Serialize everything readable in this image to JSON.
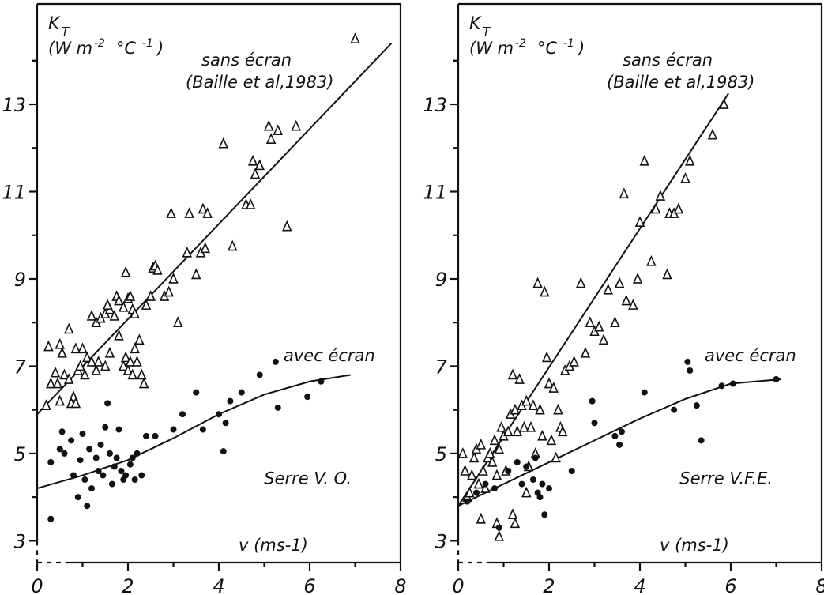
{
  "chart_data": [
    {
      "type": "scatter",
      "xlim": [
        0,
        8
      ],
      "ylim": [
        2.5,
        15.3
      ],
      "xticks": [
        0,
        2,
        4,
        6,
        8
      ],
      "yticks": [
        3,
        5,
        7,
        9,
        11,
        13
      ],
      "ylabel_main": "K",
      "ylabel_sub": "T",
      "ylabel_unit": "(W m",
      "ylabel_exp1": "-2",
      "ylabel_mid": "°C",
      "ylabel_exp2": "-1",
      "ylabel_close": ")",
      "xlabel": "v (ms-1)",
      "greenhouse_label": "Serre V. O.",
      "line_upper_label": "sans écran",
      "line_upper_ref": "(Baille et al,1983)",
      "line_lower_label": "avec écran",
      "series": [
        {
          "name": "sans écran",
          "marker": "triangle",
          "points": [
            [
              0.25,
              7.45
            ],
            [
              0.4,
              6.85
            ],
            [
              0.5,
              7.5
            ],
            [
              0.55,
              7.3
            ],
            [
              0.6,
              6.8
            ],
            [
              0.3,
              6.6
            ],
            [
              0.45,
              6.6
            ],
            [
              0.7,
              6.7
            ],
            [
              0.8,
              6.3
            ],
            [
              0.85,
              7.4
            ],
            [
              0.9,
              6.9
            ],
            [
              0.95,
              7.0
            ],
            [
              1.0,
              7.4
            ],
            [
              0.2,
              6.1
            ],
            [
              0.5,
              6.2
            ],
            [
              0.75,
              6.15
            ],
            [
              0.85,
              6.15
            ],
            [
              0.7,
              7.85
            ],
            [
              1.05,
              6.8
            ],
            [
              1.1,
              7.2
            ],
            [
              1.2,
              7.1
            ],
            [
              1.3,
              6.9
            ],
            [
              1.35,
              7.1
            ],
            [
              1.2,
              8.15
            ],
            [
              1.3,
              8.0
            ],
            [
              1.4,
              8.1
            ],
            [
              1.5,
              8.2
            ],
            [
              1.6,
              8.3
            ],
            [
              1.55,
              8.4
            ],
            [
              1.7,
              8.15
            ],
            [
              1.75,
              8.6
            ],
            [
              1.8,
              8.5
            ],
            [
              1.9,
              8.35
            ],
            [
              1.95,
              9.15
            ],
            [
              2.0,
              8.55
            ],
            [
              2.05,
              8.6
            ],
            [
              2.1,
              8.3
            ],
            [
              2.15,
              8.2
            ],
            [
              1.5,
              7.0
            ],
            [
              1.6,
              7.3
            ],
            [
              1.8,
              7.7
            ],
            [
              1.9,
              7.0
            ],
            [
              1.95,
              7.2
            ],
            [
              2.0,
              6.9
            ],
            [
              2.05,
              7.1
            ],
            [
              2.1,
              6.8
            ],
            [
              2.15,
              7.4
            ],
            [
              2.2,
              7.1
            ],
            [
              2.25,
              7.6
            ],
            [
              2.3,
              6.8
            ],
            [
              2.35,
              6.6
            ],
            [
              2.4,
              8.4
            ],
            [
              2.5,
              8.6
            ],
            [
              2.55,
              9.25
            ],
            [
              2.6,
              9.3
            ],
            [
              2.65,
              9.2
            ],
            [
              2.8,
              8.6
            ],
            [
              2.9,
              8.7
            ],
            [
              2.95,
              10.5
            ],
            [
              3.0,
              9.0
            ],
            [
              3.1,
              8.0
            ],
            [
              3.3,
              9.6
            ],
            [
              3.35,
              10.5
            ],
            [
              3.5,
              9.1
            ],
            [
              3.6,
              9.6
            ],
            [
              3.7,
              9.7
            ],
            [
              3.65,
              10.6
            ],
            [
              3.75,
              10.5
            ],
            [
              4.1,
              12.1
            ],
            [
              4.3,
              9.75
            ],
            [
              4.6,
              10.7
            ],
            [
              4.7,
              10.7
            ],
            [
              4.75,
              11.7
            ],
            [
              4.8,
              11.4
            ],
            [
              4.9,
              11.6
            ],
            [
              5.1,
              12.5
            ],
            [
              5.15,
              12.2
            ],
            [
              5.3,
              12.4
            ],
            [
              5.5,
              10.2
            ],
            [
              5.7,
              12.5
            ],
            [
              7.0,
              14.5
            ]
          ]
        },
        {
          "name": "avec écran",
          "marker": "dot",
          "points": [
            [
              0.3,
              3.5
            ],
            [
              0.3,
              4.8
            ],
            [
              0.5,
              5.1
            ],
            [
              0.55,
              5.5
            ],
            [
              0.6,
              5.0
            ],
            [
              0.75,
              5.3
            ],
            [
              0.8,
              4.5
            ],
            [
              0.9,
              4.0
            ],
            [
              0.95,
              4.85
            ],
            [
              1.0,
              5.45
            ],
            [
              1.05,
              4.4
            ],
            [
              1.1,
              3.8
            ],
            [
              1.15,
              5.1
            ],
            [
              1.2,
              4.2
            ],
            [
              1.3,
              4.9
            ],
            [
              1.35,
              4.6
            ],
            [
              1.4,
              5.2
            ],
            [
              1.45,
              4.5
            ],
            [
              1.5,
              5.6
            ],
            [
              1.55,
              6.15
            ],
            [
              1.6,
              5.0
            ],
            [
              1.65,
              4.3
            ],
            [
              1.7,
              4.7
            ],
            [
              1.75,
              4.9
            ],
            [
              1.8,
              5.55
            ],
            [
              1.85,
              4.6
            ],
            [
              1.9,
              4.4
            ],
            [
              1.95,
              4.5
            ],
            [
              2.05,
              4.75
            ],
            [
              2.1,
              4.9
            ],
            [
              2.15,
              4.4
            ],
            [
              2.2,
              5.0
            ],
            [
              2.3,
              4.5
            ],
            [
              2.4,
              5.4
            ],
            [
              2.6,
              5.4
            ],
            [
              3.0,
              5.55
            ],
            [
              3.2,
              5.9
            ],
            [
              3.5,
              6.4
            ],
            [
              3.65,
              5.55
            ],
            [
              4.0,
              5.9
            ],
            [
              4.1,
              5.05
            ],
            [
              4.15,
              5.7
            ],
            [
              4.25,
              6.2
            ],
            [
              4.5,
              6.4
            ],
            [
              4.9,
              6.8
            ],
            [
              5.25,
              7.1
            ],
            [
              5.3,
              6.05
            ],
            [
              5.95,
              6.3
            ],
            [
              6.25,
              6.65
            ]
          ]
        }
      ]
    },
    {
      "type": "scatter",
      "xlim": [
        0,
        8
      ],
      "ylim": [
        2.5,
        15.3
      ],
      "xticks": [
        0,
        2,
        4,
        6,
        8
      ],
      "yticks": [
        3,
        5,
        7,
        9,
        11,
        13
      ],
      "ylabel_main": "K",
      "ylabel_sub": "T",
      "ylabel_unit": "(W m",
      "ylabel_exp1": "-2",
      "ylabel_mid": "°C",
      "ylabel_exp2": "-1",
      "ylabel_close": ")",
      "xlabel": "v (ms-1)",
      "greenhouse_label": "Serre V.F.E.",
      "line_upper_label": "sans écran",
      "line_upper_ref": "(Baille et al,1983)",
      "line_lower_label": "avec écran",
      "series": [
        {
          "name": "sans écran",
          "marker": "triangle",
          "points": [
            [
              0.1,
              5.0
            ],
            [
              0.15,
              4.6
            ],
            [
              0.2,
              4.0
            ],
            [
              0.25,
              4.1
            ],
            [
              0.3,
              4.5
            ],
            [
              0.35,
              4.9
            ],
            [
              0.4,
              5.1
            ],
            [
              0.45,
              4.3
            ],
            [
              0.5,
              5.2
            ],
            [
              0.55,
              4.6
            ],
            [
              0.6,
              4.2
            ],
            [
              0.65,
              4.9
            ],
            [
              0.7,
              5.0
            ],
            [
              0.75,
              4.8
            ],
            [
              0.8,
              5.3
            ],
            [
              0.85,
              4.5
            ],
            [
              0.9,
              5.1
            ],
            [
              0.95,
              5.6
            ],
            [
              1.0,
              5.4
            ],
            [
              1.05,
              4.6
            ],
            [
              1.1,
              5.5
            ],
            [
              1.15,
              5.9
            ],
            [
              1.2,
              6.8
            ],
            [
              1.25,
              6.0
            ],
            [
              1.3,
              5.5
            ],
            [
              1.35,
              6.7
            ],
            [
              1.4,
              6.1
            ],
            [
              1.45,
              5.6
            ],
            [
              1.5,
              6.2
            ],
            [
              1.55,
              4.7
            ],
            [
              1.6,
              5.6
            ],
            [
              1.65,
              6.1
            ],
            [
              1.7,
              5.0
            ],
            [
              1.75,
              8.9
            ],
            [
              1.8,
              6.0
            ],
            [
              1.85,
              5.4
            ],
            [
              1.9,
              8.7
            ],
            [
              1.95,
              7.2
            ],
            [
              2.0,
              6.6
            ],
            [
              2.05,
              5.3
            ],
            [
              2.1,
              6.5
            ],
            [
              2.15,
              4.9
            ],
            [
              2.2,
              6.0
            ],
            [
              2.25,
              5.6
            ],
            [
              2.3,
              5.5
            ],
            [
              2.35,
              6.9
            ],
            [
              2.45,
              7.0
            ],
            [
              2.55,
              7.1
            ],
            [
              2.7,
              8.9
            ],
            [
              2.8,
              7.3
            ],
            [
              2.9,
              8.0
            ],
            [
              3.0,
              7.8
            ],
            [
              3.1,
              7.9
            ],
            [
              3.2,
              7.6
            ],
            [
              3.3,
              8.75
            ],
            [
              3.45,
              8.0
            ],
            [
              3.55,
              8.9
            ],
            [
              3.65,
              10.95
            ],
            [
              3.7,
              8.5
            ],
            [
              3.85,
              8.4
            ],
            [
              3.95,
              9.0
            ],
            [
              4.0,
              10.3
            ],
            [
              4.1,
              11.7
            ],
            [
              4.25,
              9.4
            ],
            [
              4.35,
              10.6
            ],
            [
              4.45,
              10.9
            ],
            [
              4.6,
              9.1
            ],
            [
              4.65,
              10.5
            ],
            [
              4.75,
              10.5
            ],
            [
              4.85,
              10.6
            ],
            [
              5.0,
              11.3
            ],
            [
              5.1,
              11.7
            ],
            [
              5.6,
              12.3
            ],
            [
              5.85,
              13.0
            ],
            [
              0.85,
              3.4
            ],
            [
              0.9,
              3.1
            ],
            [
              1.2,
              3.6
            ],
            [
              1.25,
              3.4
            ],
            [
              1.5,
              4.1
            ],
            [
              0.5,
              3.5
            ]
          ]
        },
        {
          "name": "avec écran",
          "marker": "dot",
          "points": [
            [
              0.2,
              3.9
            ],
            [
              0.4,
              4.1
            ],
            [
              0.6,
              4.3
            ],
            [
              0.8,
              4.2
            ],
            [
              0.9,
              3.3
            ],
            [
              1.1,
              4.6
            ],
            [
              1.3,
              4.8
            ],
            [
              1.4,
              4.3
            ],
            [
              1.5,
              4.7
            ],
            [
              1.65,
              4.4
            ],
            [
              1.7,
              4.9
            ],
            [
              1.75,
              4.1
            ],
            [
              1.8,
              4.0
            ],
            [
              1.85,
              4.3
            ],
            [
              1.9,
              3.6
            ],
            [
              2.0,
              4.2
            ],
            [
              2.5,
              4.6
            ],
            [
              2.95,
              6.2
            ],
            [
              3.0,
              5.7
            ],
            [
              3.45,
              5.4
            ],
            [
              3.55,
              5.2
            ],
            [
              3.6,
              5.5
            ],
            [
              4.1,
              6.4
            ],
            [
              4.75,
              6.0
            ],
            [
              5.05,
              7.1
            ],
            [
              5.1,
              6.9
            ],
            [
              5.25,
              6.1
            ],
            [
              5.35,
              5.3
            ],
            [
              5.8,
              6.55
            ],
            [
              6.05,
              6.6
            ],
            [
              7.0,
              6.7
            ]
          ]
        }
      ]
    }
  ]
}
